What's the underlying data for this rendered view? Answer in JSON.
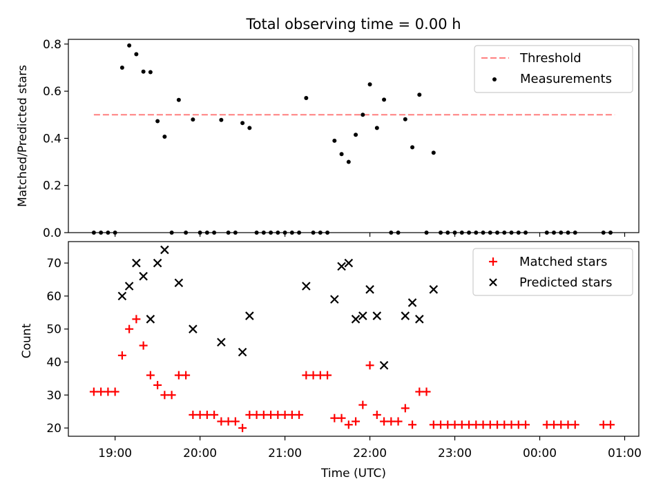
{
  "chart_data": [
    {
      "type": "scatter",
      "title": "Total observing time = 0.00 h",
      "xlabel": "",
      "ylabel": "Matched/Predicted stars",
      "xlim": [
        "18:27",
        "01:10"
      ],
      "ylim": [
        0,
        0.82
      ],
      "yticks": [
        0.0,
        0.2,
        0.4,
        0.6,
        0.8
      ],
      "ytick_labels": [
        "0.0",
        "0.2",
        "0.4",
        "0.6",
        "0.8"
      ],
      "legend": {
        "position": "top-right",
        "entries": [
          "Threshold",
          "Measurements"
        ]
      },
      "threshold": {
        "name": "Threshold",
        "value": 0.5,
        "x_start": "18:45",
        "x_end": "00:53",
        "color": "#ff7f7f"
      },
      "series": [
        {
          "name": "Measurements",
          "color": "#000000",
          "points": [
            [
              "18:45",
              0
            ],
            [
              "18:50",
              0
            ],
            [
              "18:55",
              0
            ],
            [
              "19:00",
              0
            ],
            [
              "19:05",
              0.7
            ],
            [
              "19:10",
              0.794
            ],
            [
              "19:15",
              0.757
            ],
            [
              "19:20",
              0.683
            ],
            [
              "19:25",
              0.681
            ],
            [
              "19:30",
              0.473
            ],
            [
              "19:35",
              0.407
            ],
            [
              "19:40",
              0
            ],
            [
              "19:45",
              0.563
            ],
            [
              "19:50",
              0
            ],
            [
              "19:55",
              0.48
            ],
            [
              "20:00",
              0
            ],
            [
              "20:05",
              0
            ],
            [
              "20:10",
              0
            ],
            [
              "20:15",
              0.478
            ],
            [
              "20:20",
              0
            ],
            [
              "20:25",
              0
            ],
            [
              "20:30",
              0.465
            ],
            [
              "20:35",
              0.444
            ],
            [
              "20:40",
              0
            ],
            [
              "20:45",
              0
            ],
            [
              "20:50",
              0
            ],
            [
              "20:55",
              0
            ],
            [
              "21:00",
              0
            ],
            [
              "21:05",
              0
            ],
            [
              "21:10",
              0
            ],
            [
              "21:15",
              0.571
            ],
            [
              "21:20",
              0
            ],
            [
              "21:25",
              0
            ],
            [
              "21:30",
              0
            ],
            [
              "21:35",
              0.39
            ],
            [
              "21:40",
              0.333
            ],
            [
              "21:45",
              0.3
            ],
            [
              "21:50",
              0.415
            ],
            [
              "21:55",
              0.5
            ],
            [
              "22:00",
              0.629
            ],
            [
              "22:05",
              0.444
            ],
            [
              "22:10",
              0.564
            ],
            [
              "22:15",
              0
            ],
            [
              "22:20",
              0
            ],
            [
              "22:25",
              0.481
            ],
            [
              "22:30",
              0.362
            ],
            [
              "22:35",
              0.585
            ],
            [
              "22:40",
              0
            ],
            [
              "22:45",
              0.339
            ],
            [
              "22:50",
              0
            ],
            [
              "22:55",
              0
            ],
            [
              "23:00",
              0
            ],
            [
              "23:05",
              0
            ],
            [
              "23:10",
              0
            ],
            [
              "23:15",
              0
            ],
            [
              "23:20",
              0
            ],
            [
              "23:25",
              0
            ],
            [
              "23:30",
              0
            ],
            [
              "23:35",
              0
            ],
            [
              "23:40",
              0
            ],
            [
              "23:45",
              0
            ],
            [
              "23:50",
              0
            ],
            [
              "00:05",
              0
            ],
            [
              "00:10",
              0
            ],
            [
              "00:15",
              0
            ],
            [
              "00:20",
              0
            ],
            [
              "00:25",
              0
            ],
            [
              "00:45",
              0
            ],
            [
              "00:50",
              0
            ]
          ]
        }
      ]
    },
    {
      "type": "scatter",
      "title": "",
      "xlabel": "Time (UTC)",
      "ylabel": "Count",
      "xlim": [
        "18:27",
        "01:10"
      ],
      "ylim": [
        17.5,
        76.5
      ],
      "yticks": [
        20,
        30,
        40,
        50,
        60,
        70
      ],
      "ytick_labels": [
        "20",
        "30",
        "40",
        "50",
        "60",
        "70"
      ],
      "xticks": [
        "19:00",
        "20:00",
        "21:00",
        "22:00",
        "23:00",
        "00:00",
        "01:00"
      ],
      "xtick_labels": [
        "19:00",
        "20:00",
        "21:00",
        "22:00",
        "23:00",
        "00:00",
        "01:00"
      ],
      "legend": {
        "position": "top-right",
        "entries": [
          "Matched stars",
          "Predicted stars"
        ]
      },
      "series": [
        {
          "name": "Matched stars",
          "marker": "plus",
          "color": "#ff0000",
          "points": [
            [
              "18:45",
              31
            ],
            [
              "18:50",
              31
            ],
            [
              "18:55",
              31
            ],
            [
              "19:00",
              31
            ],
            [
              "19:05",
              42
            ],
            [
              "19:10",
              50
            ],
            [
              "19:15",
              53
            ],
            [
              "19:20",
              45
            ],
            [
              "19:25",
              36
            ],
            [
              "19:30",
              33
            ],
            [
              "19:35",
              30
            ],
            [
              "19:40",
              30
            ],
            [
              "19:45",
              36
            ],
            [
              "19:50",
              36
            ],
            [
              "19:55",
              24
            ],
            [
              "20:00",
              24
            ],
            [
              "20:05",
              24
            ],
            [
              "20:10",
              24
            ],
            [
              "20:15",
              22
            ],
            [
              "20:20",
              22
            ],
            [
              "20:25",
              22
            ],
            [
              "20:30",
              20
            ],
            [
              "20:35",
              24
            ],
            [
              "20:40",
              24
            ],
            [
              "20:45",
              24
            ],
            [
              "20:50",
              24
            ],
            [
              "20:55",
              24
            ],
            [
              "21:00",
              24
            ],
            [
              "21:05",
              24
            ],
            [
              "21:10",
              24
            ],
            [
              "21:15",
              36
            ],
            [
              "21:20",
              36
            ],
            [
              "21:25",
              36
            ],
            [
              "21:30",
              36
            ],
            [
              "21:35",
              23
            ],
            [
              "21:40",
              23
            ],
            [
              "21:45",
              21
            ],
            [
              "21:50",
              22
            ],
            [
              "21:55",
              27
            ],
            [
              "22:00",
              39
            ],
            [
              "22:05",
              24
            ],
            [
              "22:10",
              22
            ],
            [
              "22:15",
              22
            ],
            [
              "22:20",
              22
            ],
            [
              "22:25",
              26
            ],
            [
              "22:30",
              21
            ],
            [
              "22:35",
              31
            ],
            [
              "22:40",
              31
            ],
            [
              "22:45",
              21
            ],
            [
              "22:50",
              21
            ],
            [
              "22:55",
              21
            ],
            [
              "23:00",
              21
            ],
            [
              "23:05",
              21
            ],
            [
              "23:10",
              21
            ],
            [
              "23:15",
              21
            ],
            [
              "23:20",
              21
            ],
            [
              "23:25",
              21
            ],
            [
              "23:30",
              21
            ],
            [
              "23:35",
              21
            ],
            [
              "23:40",
              21
            ],
            [
              "23:45",
              21
            ],
            [
              "23:50",
              21
            ],
            [
              "00:05",
              21
            ],
            [
              "00:10",
              21
            ],
            [
              "00:15",
              21
            ],
            [
              "00:20",
              21
            ],
            [
              "00:25",
              21
            ],
            [
              "00:45",
              21
            ],
            [
              "00:50",
              21
            ]
          ]
        },
        {
          "name": "Predicted stars",
          "marker": "x",
          "color": "#000000",
          "points": [
            [
              "19:05",
              60
            ],
            [
              "19:10",
              63
            ],
            [
              "19:15",
              70
            ],
            [
              "19:20",
              66
            ],
            [
              "19:25",
              53
            ],
            [
              "19:30",
              70
            ],
            [
              "19:35",
              74
            ],
            [
              "19:45",
              64
            ],
            [
              "19:55",
              50
            ],
            [
              "20:15",
              46
            ],
            [
              "20:30",
              43
            ],
            [
              "20:35",
              54
            ],
            [
              "21:15",
              63
            ],
            [
              "21:35",
              59
            ],
            [
              "21:40",
              69
            ],
            [
              "21:45",
              70
            ],
            [
              "21:50",
              53
            ],
            [
              "21:55",
              54
            ],
            [
              "22:00",
              62
            ],
            [
              "22:05",
              54
            ],
            [
              "22:10",
              39
            ],
            [
              "22:25",
              54
            ],
            [
              "22:30",
              58
            ],
            [
              "22:35",
              53
            ],
            [
              "22:45",
              62
            ]
          ]
        }
      ]
    }
  ]
}
